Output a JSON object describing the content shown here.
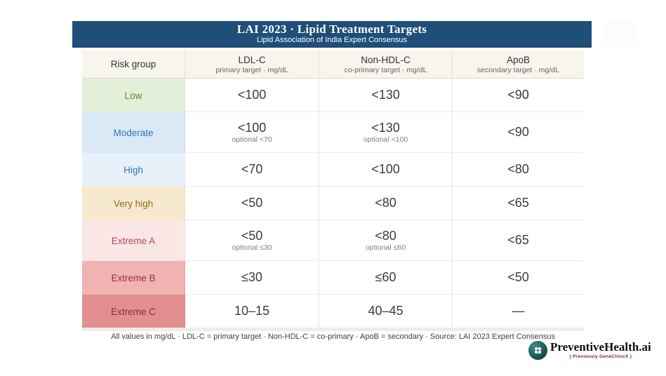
{
  "banner": {
    "title": "LAI 2023 · Lipid Treatment Targets",
    "subtitle": "Lipid Association of India Expert Consensus",
    "bg_color": "#1f4e79"
  },
  "table": {
    "columns": [
      {
        "label": "Risk group",
        "sublabel": ""
      },
      {
        "label": "LDL-C",
        "sublabel": "primary target · mg/dL"
      },
      {
        "label": "Non-HDL-C",
        "sublabel": "co-primary target · mg/dL"
      },
      {
        "label": "ApoB",
        "sublabel": "secondary target · mg/dL"
      }
    ],
    "rows": [
      {
        "label": "Low",
        "bg": "#e3efd8",
        "fg": "#568a33",
        "cells": [
          {
            "value": "<100",
            "note": ""
          },
          {
            "value": "<130",
            "note": ""
          },
          {
            "value": "<90",
            "note": ""
          }
        ]
      },
      {
        "label": "Moderate",
        "bg": "#dbe8f6",
        "fg": "#2e75b6",
        "cells": [
          {
            "value": "<100",
            "note": "optional <70"
          },
          {
            "value": "<130",
            "note": "optional <100"
          },
          {
            "value": "<90",
            "note": ""
          }
        ]
      },
      {
        "label": "High",
        "bg": "#e8f1fa",
        "fg": "#2e75b6",
        "cells": [
          {
            "value": "<70",
            "note": ""
          },
          {
            "value": "<100",
            "note": ""
          },
          {
            "value": "<80",
            "note": ""
          }
        ]
      },
      {
        "label": "Very high",
        "bg": "#f7e9cd",
        "fg": "#8c6b20",
        "cells": [
          {
            "value": "<50",
            "note": ""
          },
          {
            "value": "<80",
            "note": ""
          },
          {
            "value": "<65",
            "note": ""
          }
        ]
      },
      {
        "label": "Extreme A",
        "bg": "#fbe6e6",
        "fg": "#b34a52",
        "cells": [
          {
            "value": "<50",
            "note": "optional ≤30"
          },
          {
            "value": "<80",
            "note": "optional ≤60"
          },
          {
            "value": "<65",
            "note": ""
          }
        ]
      },
      {
        "label": "Extreme B",
        "bg": "#f1b2b2",
        "fg": "#993136",
        "cells": [
          {
            "value": "≤30",
            "note": ""
          },
          {
            "value": "≤60",
            "note": ""
          },
          {
            "value": "<50",
            "note": ""
          }
        ]
      },
      {
        "label": "Extreme C",
        "bg": "#e48f8f",
        "fg": "#8c2a32",
        "cells": [
          {
            "value": "10–15",
            "note": ""
          },
          {
            "value": "40–45",
            "note": ""
          },
          {
            "value": "—",
            "note": ""
          }
        ]
      }
    ]
  },
  "footnote": "All values in mg/dL · LDL-C = primary target · Non-HDL-C = co-primary · ApoB = secondary · Source: LAI 2023 Expert Consensus",
  "logo": {
    "name": "PreventiveHealth.ai",
    "tagline": "( Previously  GeneClinicX )",
    "icon": "clover-icon"
  },
  "chart_data": {
    "type": "table",
    "title": "LAI 2023 · Lipid Treatment Targets",
    "subtitle": "Lipid Association of India Expert Consensus",
    "columns": [
      "Risk group",
      "LDL-C primary target · mg/dL",
      "Non-HDL-C co-primary target · mg/dL",
      "ApoB secondary target · mg/dL"
    ],
    "rows": [
      [
        "Low",
        "<100",
        "<130",
        "<90"
      ],
      [
        "Moderate",
        "<100 (optional <70)",
        "<130 (optional <100)",
        "<90"
      ],
      [
        "High",
        "<70",
        "<100",
        "<80"
      ],
      [
        "Very high",
        "<50",
        "<80",
        "<65"
      ],
      [
        "Extreme A",
        "<50 (optional ≤30)",
        "<80 (optional ≤60)",
        "<65"
      ],
      [
        "Extreme B",
        "≤30",
        "≤60",
        "<50"
      ],
      [
        "Extreme C",
        "10–15",
        "40–45",
        "—"
      ]
    ]
  }
}
